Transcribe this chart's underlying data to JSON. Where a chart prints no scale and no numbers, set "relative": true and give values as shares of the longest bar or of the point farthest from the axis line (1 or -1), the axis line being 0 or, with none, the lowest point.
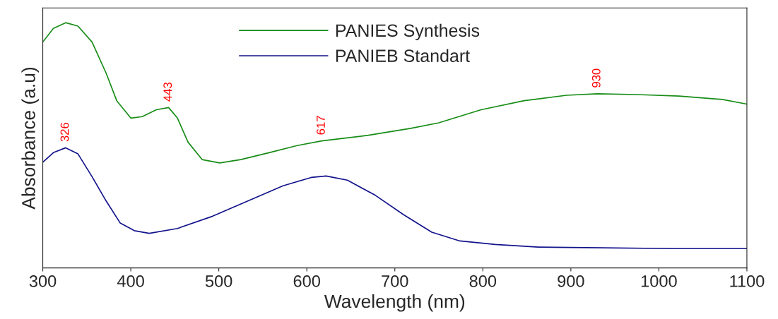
{
  "chart_data": {
    "type": "line",
    "xlabel": "Wavelength (nm)",
    "ylabel": "Absorbance (a.u)",
    "relative": true,
    "tick_labels": "x",
    "xlim": [
      300,
      1100
    ],
    "xticks": [
      300,
      400,
      500,
      600,
      700,
      800,
      900,
      1000,
      1100
    ],
    "legend": "top",
    "grid": false,
    "series": [
      {
        "name": "PANIES Synthesis",
        "color": "#178c17",
        "x": [
          300,
          312,
          326,
          340,
          356,
          372,
          384,
          400,
          413,
          429,
          443,
          453,
          465,
          481,
          501,
          525,
          557,
          589,
          617,
          670,
          718,
          750,
          798,
          847,
          895,
          930,
          975,
          1023,
          1072,
          1100
        ],
        "values": [
          0.921,
          0.977,
          1.0,
          0.986,
          0.921,
          0.794,
          0.682,
          0.611,
          0.617,
          0.645,
          0.654,
          0.611,
          0.513,
          0.442,
          0.428,
          0.442,
          0.47,
          0.499,
          0.518,
          0.541,
          0.569,
          0.592,
          0.645,
          0.682,
          0.704,
          0.71,
          0.707,
          0.701,
          0.687,
          0.668
        ]
      },
      {
        "name": "PANIEB Standart",
        "color": "#13138c",
        "x": [
          300,
          312,
          326,
          340,
          356,
          372,
          388,
          404,
          421,
          453,
          493,
          533,
          573,
          605,
          622,
          646,
          678,
          710,
          742,
          774,
          814,
          863,
          935,
          1015,
          1100
        ],
        "values": [
          0.431,
          0.47,
          0.49,
          0.465,
          0.372,
          0.273,
          0.183,
          0.152,
          0.141,
          0.161,
          0.211,
          0.273,
          0.335,
          0.369,
          0.375,
          0.358,
          0.296,
          0.217,
          0.146,
          0.11,
          0.096,
          0.085,
          0.082,
          0.079,
          0.079
        ]
      }
    ],
    "annotations": [
      {
        "text": "326",
        "x": 326,
        "y": 0.49
      },
      {
        "text": "443",
        "x": 443,
        "y": 0.654
      },
      {
        "text": "617",
        "x": 617,
        "y": 0.518
      },
      {
        "text": "930",
        "x": 930,
        "y": 0.71
      }
    ]
  }
}
